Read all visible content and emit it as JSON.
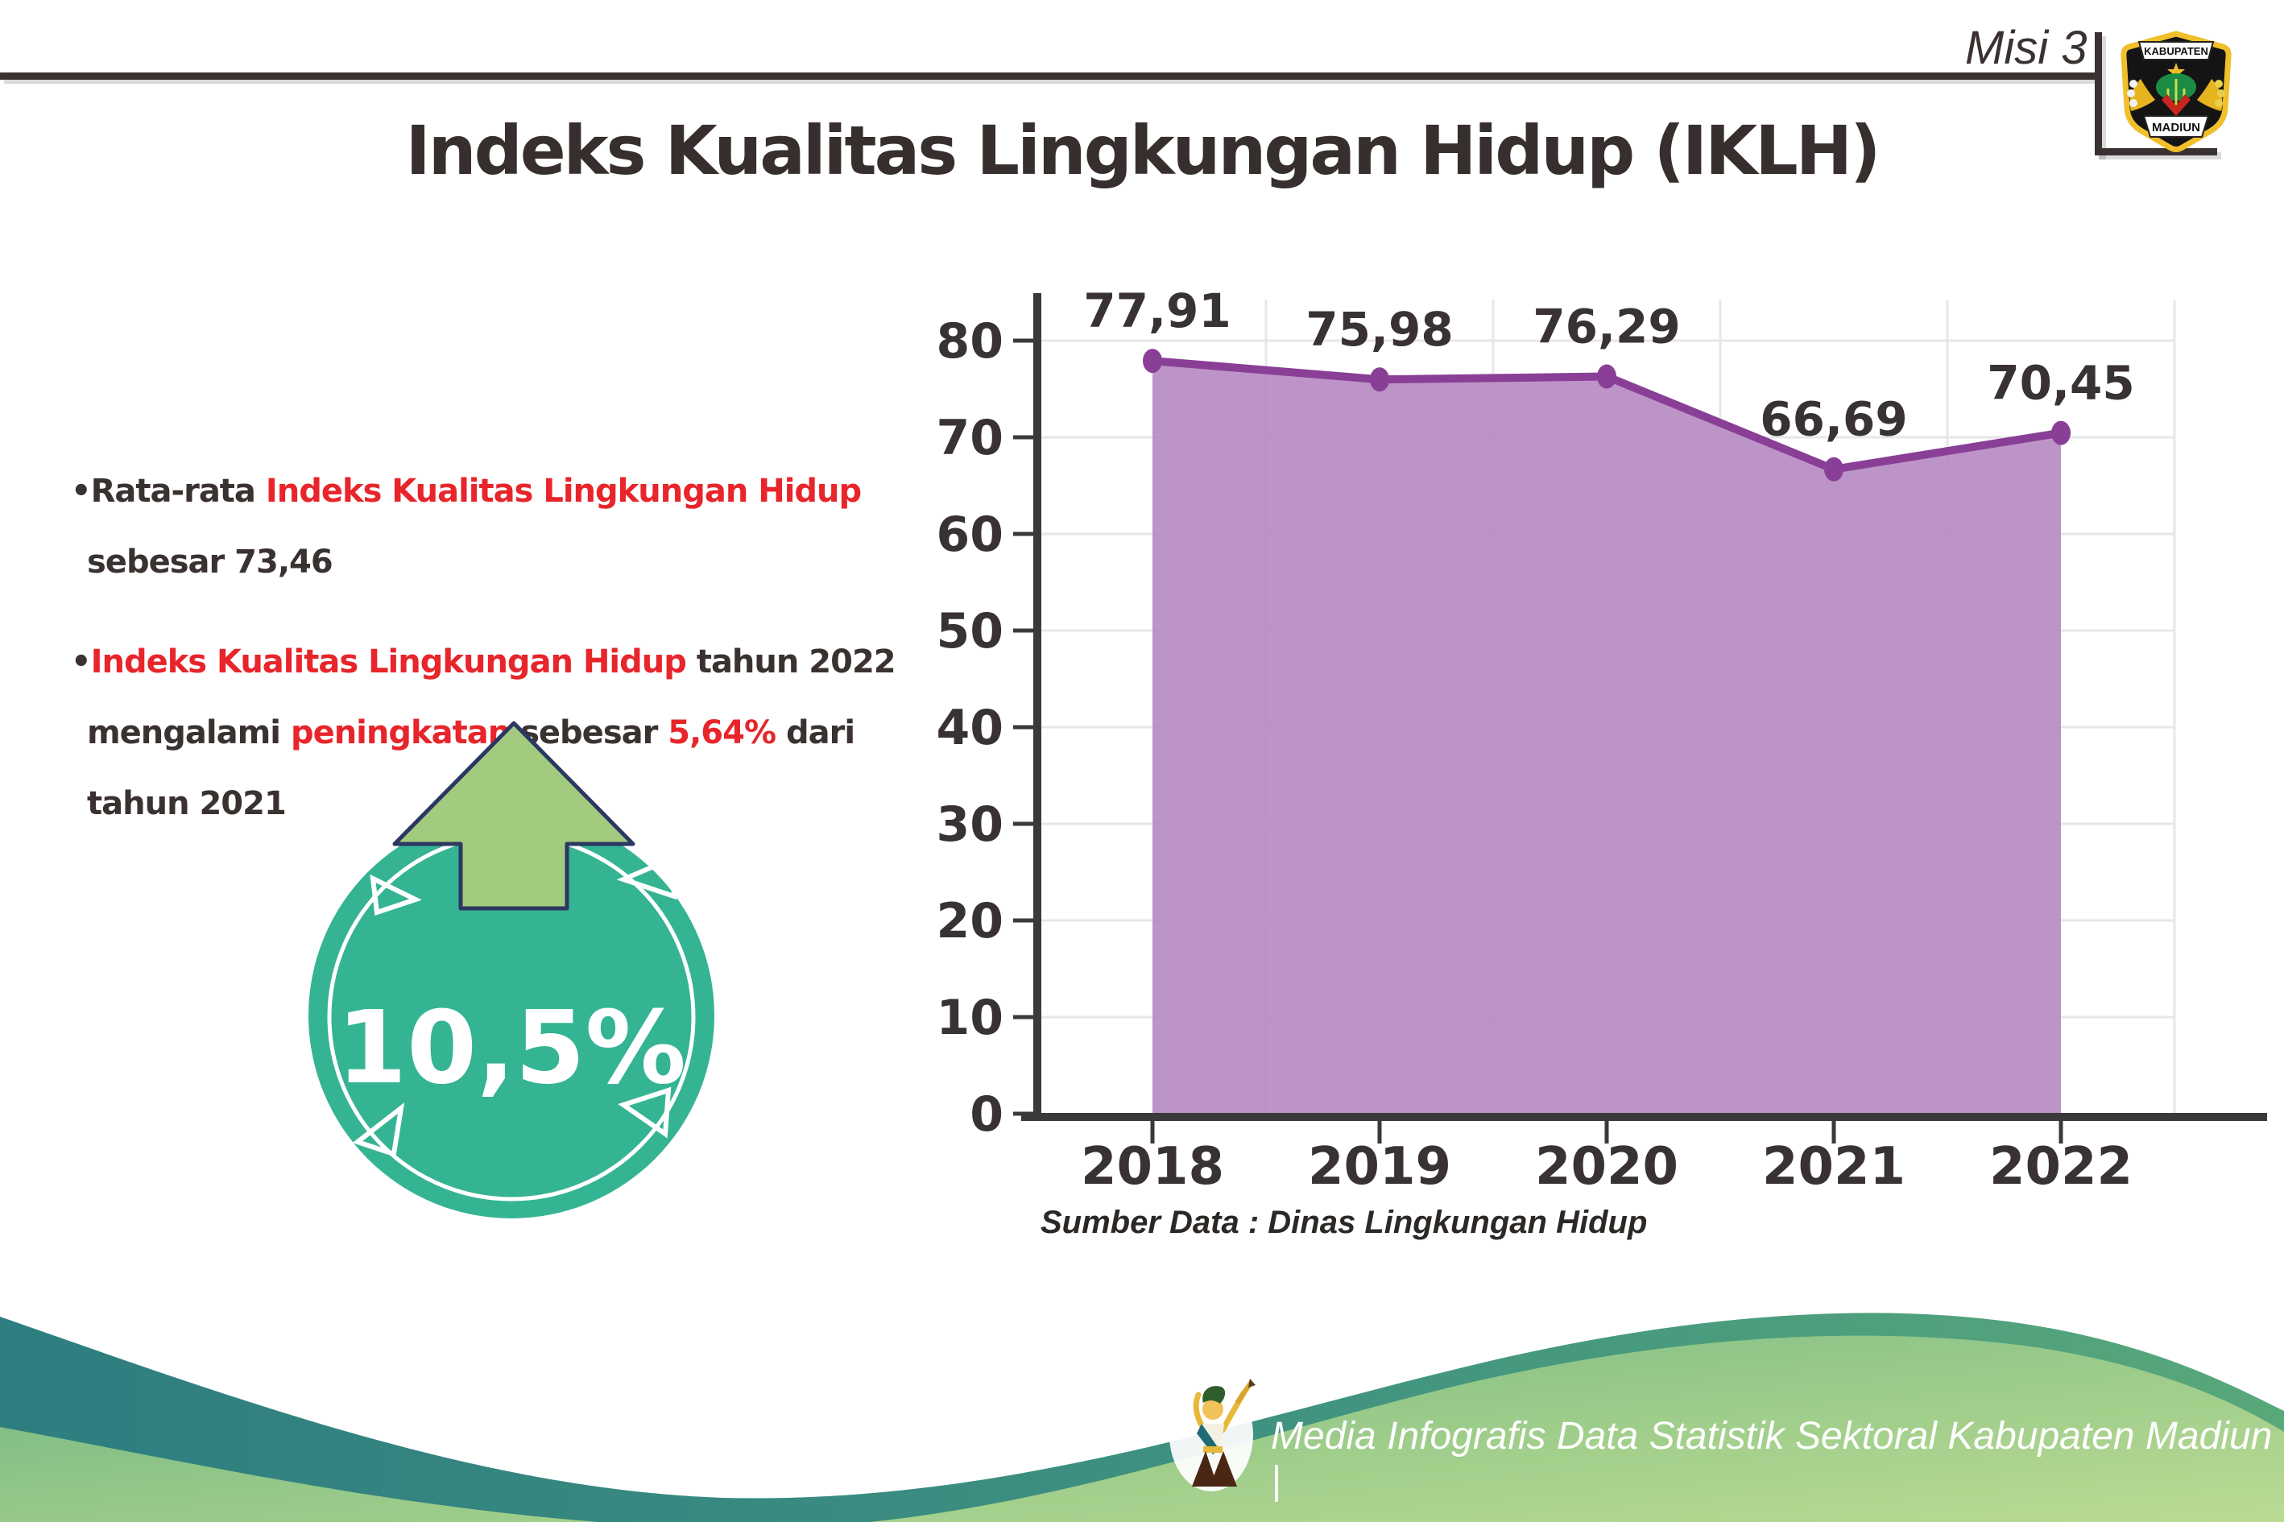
{
  "header": {
    "misi": "Misi 3",
    "title": "Indeks Kualitas Lingkungan Hidup (IKLH)",
    "logo_top": "KABUPATEN",
    "logo_bottom": "MADIUN"
  },
  "bullets": {
    "glyph": "•",
    "b1": {
      "prefix": "Rata-rata ",
      "highlight": "Indeks Kualitas Lingkungan Hidup",
      "line2": "sebesar 73,46"
    },
    "b2": {
      "highlight": "Indeks Kualitas Lingkungan Hidup",
      "suffix1": " tahun 2022",
      "l2a": "mengalami ",
      "l2b": "peningkatan",
      "l2c": " sebesar ",
      "l2d": "5,64%",
      "l2e": " dari",
      "line3": "tahun 2021"
    }
  },
  "badge": {
    "value": "10,5%",
    "circle_color": "#35b493",
    "arrow_color": "#a3cb7f"
  },
  "chart_data": {
    "type": "area",
    "title": "",
    "xlabel": "",
    "ylabel": "",
    "categories": [
      "2018",
      "2019",
      "2020",
      "2021",
      "2022"
    ],
    "values": [
      77.91,
      75.98,
      76.29,
      66.69,
      70.45
    ],
    "point_labels": [
      "77,91",
      "75,98",
      "76,29",
      "66,69",
      "70,45"
    ],
    "ylim": [
      0,
      85
    ],
    "yticks": [
      0,
      10,
      20,
      30,
      40,
      50,
      60,
      70,
      80
    ],
    "grid": true,
    "legend": "none",
    "source_note": "Sumber Data : Dinas Lingkungan Hidup",
    "colors": {
      "area": "#b78bc2",
      "line": "#8a3f97",
      "marker": "#8a3f97",
      "axis": "#3a3a3a",
      "grid": "#e7e7e7",
      "label": "#383234"
    }
  },
  "footer": {
    "text": "Media Infografis Data Statistik Sektoral Kabupaten Madiun |"
  },
  "colors": {
    "accent_red": "#e7252b",
    "text_dark": "#3a3230",
    "wave_teal": "#2e7d80",
    "wave_green": "#9ccc8a"
  }
}
